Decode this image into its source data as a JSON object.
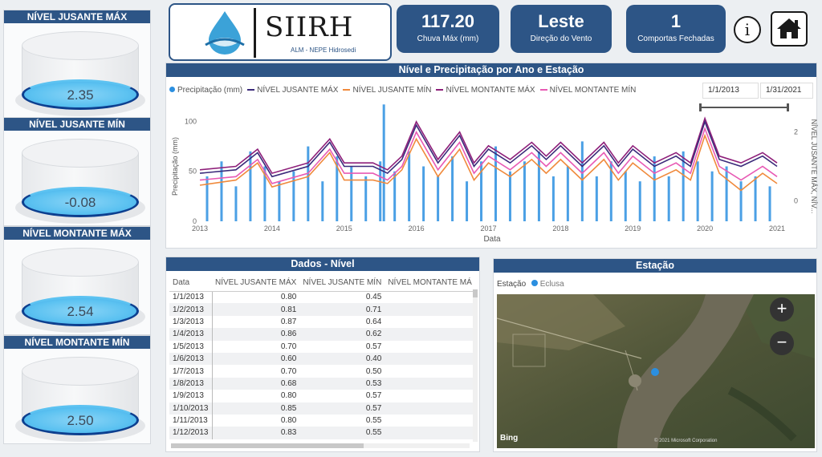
{
  "gauges": [
    {
      "title": "NÍVEL JUSANTE MÁX",
      "value": "2.35"
    },
    {
      "title": "NÍVEL JUSANTE MÍN",
      "value": "-0.08"
    },
    {
      "title": "NÍVEL MONTANTE MÁX",
      "value": "2.54"
    },
    {
      "title": "NÍVEL MONTANTE MÍN",
      "value": "2.50"
    }
  ],
  "logo": {
    "title": "SIIRH",
    "subtitle": "ALM - NEPE Hidrosedi"
  },
  "kpis": [
    {
      "value": "117.20",
      "label": "Chuva Máx (mm)"
    },
    {
      "value": "Leste",
      "label": "Direção do Vento"
    },
    {
      "value": "1",
      "label": "Comportas Fechadas"
    }
  ],
  "icons": {
    "info": "info-icon",
    "home": "home-icon"
  },
  "chart_panel": {
    "title": "Nível e Precipitação por Ano e Estação",
    "legend": [
      {
        "name": "Precipitação (mm)",
        "color": "#2b8fe0"
      },
      {
        "name": "NÍVEL JUSANTE MÁX",
        "color": "#3b2a7a"
      },
      {
        "name": "NÍVEL JUSANTE MÍN",
        "color": "#f08a3c"
      },
      {
        "name": "NÍVEL MONTANTE MÁX",
        "color": "#8e1f7a"
      },
      {
        "name": "NÍVEL MONTANTE MÍN",
        "color": "#e85ab4"
      }
    ],
    "date_start": "1/1/2013",
    "date_end": "1/31/2021"
  },
  "chart_data": {
    "type": "line",
    "xlabel": "Data",
    "ylabel": "Precipitação (mm)",
    "y2label": "NÍVEL JUSANTE MÁX, NÍV...",
    "ylim": [
      0,
      110
    ],
    "y2lim": [
      -0.6,
      2.6
    ],
    "yticks": [
      "0",
      "50",
      "100"
    ],
    "y2ticks": [
      "0",
      "2"
    ],
    "x_ticks": [
      "2013",
      "2014",
      "2015",
      "2016",
      "2017",
      "2018",
      "2019",
      "2020",
      "2021"
    ],
    "series": [
      {
        "name": "NÍVEL JUSANTE MÁX",
        "x": [
          2013.0,
          2013.5,
          2013.8,
          2014.0,
          2014.5,
          2014.8,
          2015.0,
          2015.4,
          2015.6,
          2015.8,
          2016.0,
          2016.3,
          2016.6,
          2016.8,
          2017.0,
          2017.3,
          2017.6,
          2017.8,
          2018.0,
          2018.3,
          2018.6,
          2018.8,
          2019.0,
          2019.3,
          2019.6,
          2019.8,
          2020.0,
          2020.2,
          2020.5,
          2020.8,
          2021.0
        ],
        "values": [
          0.8,
          0.9,
          1.4,
          0.7,
          1.0,
          1.7,
          1.0,
          1.0,
          0.8,
          1.2,
          2.2,
          1.1,
          1.9,
          1.0,
          1.5,
          1.1,
          1.6,
          1.2,
          1.6,
          1.0,
          1.6,
          1.0,
          1.5,
          1.0,
          1.3,
          1.0,
          2.3,
          1.2,
          1.0,
          1.3,
          1.0
        ]
      },
      {
        "name": "NÍVEL JUSANTE MÍN",
        "x": [
          2013.0,
          2013.5,
          2013.8,
          2014.0,
          2014.5,
          2014.8,
          2015.0,
          2015.4,
          2015.6,
          2015.8,
          2016.0,
          2016.3,
          2016.6,
          2016.8,
          2017.0,
          2017.3,
          2017.6,
          2017.8,
          2018.0,
          2018.3,
          2018.6,
          2018.8,
          2019.0,
          2019.3,
          2019.6,
          2019.8,
          2020.0,
          2020.2,
          2020.5,
          2020.8,
          2021.0
        ],
        "values": [
          0.45,
          0.6,
          1.1,
          0.4,
          0.7,
          1.4,
          0.6,
          0.6,
          0.5,
          0.9,
          1.8,
          0.7,
          1.5,
          0.6,
          1.1,
          0.7,
          1.2,
          0.8,
          1.2,
          0.6,
          1.2,
          0.6,
          1.1,
          0.6,
          0.9,
          0.6,
          1.9,
          0.8,
          0.3,
          0.8,
          0.5
        ]
      },
      {
        "name": "NÍVEL MONTANTE MÁX",
        "x": [
          2013.0,
          2013.5,
          2013.8,
          2014.0,
          2014.5,
          2014.8,
          2015.0,
          2015.4,
          2015.6,
          2015.8,
          2016.0,
          2016.3,
          2016.6,
          2016.8,
          2017.0,
          2017.3,
          2017.6,
          2017.8,
          2018.0,
          2018.3,
          2018.6,
          2018.8,
          2019.0,
          2019.3,
          2019.6,
          2019.8,
          2020.0,
          2020.2,
          2020.5,
          2020.8,
          2021.0
        ],
        "values": [
          0.9,
          1.0,
          1.5,
          0.8,
          1.1,
          1.8,
          1.1,
          1.1,
          0.9,
          1.3,
          2.3,
          1.2,
          2.0,
          1.1,
          1.6,
          1.2,
          1.7,
          1.3,
          1.7,
          1.1,
          1.7,
          1.1,
          1.6,
          1.1,
          1.4,
          1.1,
          2.4,
          1.3,
          1.1,
          1.4,
          1.1
        ]
      },
      {
        "name": "NÍVEL MONTANTE MÍN",
        "x": [
          2013.0,
          2013.5,
          2013.8,
          2014.0,
          2014.5,
          2014.8,
          2015.0,
          2015.4,
          2015.6,
          2015.8,
          2016.0,
          2016.3,
          2016.6,
          2016.8,
          2017.0,
          2017.3,
          2017.6,
          2017.8,
          2018.0,
          2018.3,
          2018.6,
          2018.8,
          2019.0,
          2019.3,
          2019.6,
          2019.8,
          2020.0,
          2020.2,
          2020.5,
          2020.8,
          2021.0
        ],
        "values": [
          0.6,
          0.7,
          1.2,
          0.5,
          0.8,
          1.5,
          0.8,
          0.8,
          0.6,
          1.0,
          2.0,
          0.9,
          1.7,
          0.8,
          1.3,
          0.9,
          1.4,
          1.0,
          1.4,
          0.8,
          1.4,
          0.8,
          1.3,
          0.8,
          1.1,
          0.8,
          2.1,
          1.0,
          0.6,
          1.0,
          0.7
        ]
      },
      {
        "name": "Precipitação (mm)",
        "x": [
          2013.1,
          2013.3,
          2013.5,
          2013.7,
          2013.9,
          2014.1,
          2014.3,
          2014.5,
          2014.7,
          2014.9,
          2015.1,
          2015.3,
          2015.5,
          2015.55,
          2015.7,
          2015.9,
          2016.1,
          2016.3,
          2016.5,
          2016.7,
          2016.9,
          2017.1,
          2017.3,
          2017.5,
          2017.7,
          2017.9,
          2018.1,
          2018.3,
          2018.5,
          2018.7,
          2018.9,
          2019.1,
          2019.3,
          2019.5,
          2019.7,
          2019.9,
          2020.1,
          2020.3,
          2020.5,
          2020.7,
          2020.9
        ],
        "values": [
          45,
          60,
          35,
          70,
          55,
          40,
          50,
          75,
          40,
          65,
          55,
          45,
          60,
          117,
          50,
          70,
          55,
          45,
          65,
          40,
          60,
          75,
          50,
          60,
          70,
          45,
          55,
          80,
          45,
          60,
          50,
          40,
          65,
          45,
          70,
          60,
          50,
          55,
          40,
          45,
          35
        ]
      }
    ]
  },
  "table": {
    "title": "Dados - Nível",
    "columns": [
      "Data",
      "NÍVEL JUSANTE MÁX",
      "NÍVEL JUSANTE MÍN",
      "NÍVEL MONTANTE MÁ"
    ],
    "rows": [
      [
        "1/1/2013",
        "0.80",
        "0.45",
        ""
      ],
      [
        "1/2/2013",
        "0.81",
        "0.71",
        ""
      ],
      [
        "1/3/2013",
        "0.87",
        "0.64",
        ""
      ],
      [
        "1/4/2013",
        "0.86",
        "0.62",
        ""
      ],
      [
        "1/5/2013",
        "0.70",
        "0.57",
        ""
      ],
      [
        "1/6/2013",
        "0.60",
        "0.40",
        ""
      ],
      [
        "1/7/2013",
        "0.70",
        "0.50",
        ""
      ],
      [
        "1/8/2013",
        "0.68",
        "0.53",
        ""
      ],
      [
        "1/9/2013",
        "0.80",
        "0.57",
        ""
      ],
      [
        "1/10/2013",
        "0.85",
        "0.57",
        ""
      ],
      [
        "1/11/2013",
        "0.80",
        "0.55",
        ""
      ],
      [
        "1/12/2013",
        "0.83",
        "0.55",
        ""
      ]
    ]
  },
  "map": {
    "title": "Estação",
    "legend_label": "Estação",
    "legend_item": "Eclusa",
    "legend_color": "#2b8fe0",
    "zoom_in": "+",
    "zoom_out": "−",
    "bing": "Bing",
    "copyright": "© 2021 Microsoft Corporation"
  }
}
